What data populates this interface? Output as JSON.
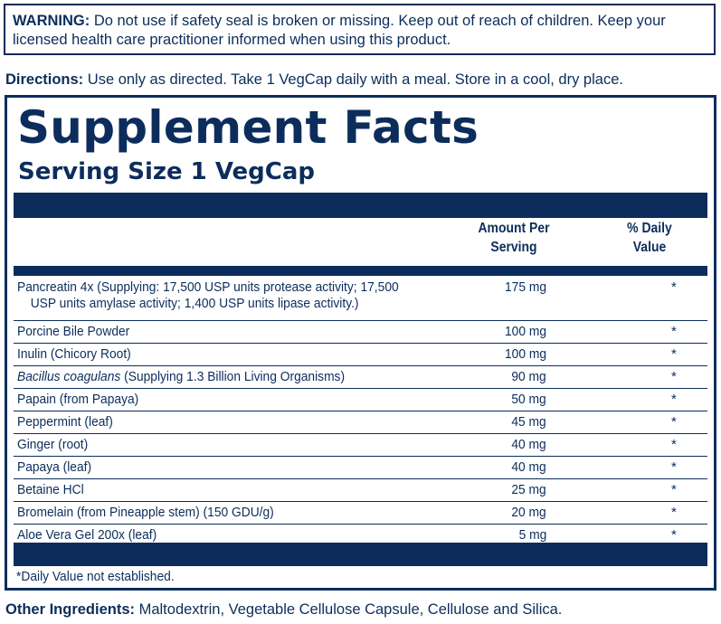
{
  "warning": {
    "label": "WARNING:",
    "text": " Do not use if safety seal is broken or missing. Keep out of reach of children. Keep your licensed health care practitioner informed when using this product."
  },
  "directions": {
    "label": "Directions:",
    "text": " Use only as directed. Take 1 VegCap daily with a meal. Store in a cool, dry place."
  },
  "facts": {
    "title": "Supplement Facts",
    "serving_size": "Serving Size 1 VegCap",
    "col_amount_1": "Amount Per",
    "col_amount_2": "Serving",
    "col_dv_1": "% Daily",
    "col_dv_2": "Value",
    "rows": [
      {
        "name": "Pancreatin 4x (Supplying: 17,500 USP units protease activity; 17,500",
        "name_cont": "USP units amylase activity; 1,400 USP units lipase activity.)",
        "amount": "175 mg",
        "dv": "*"
      },
      {
        "name": "Porcine Bile Powder",
        "amount": "100 mg",
        "dv": "*"
      },
      {
        "name": "Inulin (Chicory Root)",
        "amount": "100 mg",
        "dv": "*"
      },
      {
        "name_italic": "Bacillus coagulans",
        "name": " (Supplying 1.3 Billion Living Organisms)",
        "amount": "90 mg",
        "dv": "*"
      },
      {
        "name": "Papain (from Papaya)",
        "amount": "50 mg",
        "dv": "*"
      },
      {
        "name": "Peppermint (leaf)",
        "amount": "45 mg",
        "dv": "*"
      },
      {
        "name": "Ginger (root)",
        "amount": "40 mg",
        "dv": "*"
      },
      {
        "name": "Papaya (leaf)",
        "amount": "40 mg",
        "dv": "*"
      },
      {
        "name": "Betaine HCl",
        "amount": "25 mg",
        "dv": "*"
      },
      {
        "name": "Bromelain (from Pineapple stem) (150 GDU/g)",
        "amount": "20 mg",
        "dv": "*"
      },
      {
        "name": "Aloe Vera Gel 200x (leaf)",
        "amount": "5 mg",
        "dv": "*"
      }
    ],
    "footnote": "*Daily Value not established."
  },
  "other_ingredients": {
    "label": "Other Ingredients:",
    "text": " Maltodextrin, Vegetable Cellulose Capsule, Cellulose and Silica."
  },
  "colors": {
    "ink": "#0c2d5c",
    "background": "#ffffff"
  }
}
